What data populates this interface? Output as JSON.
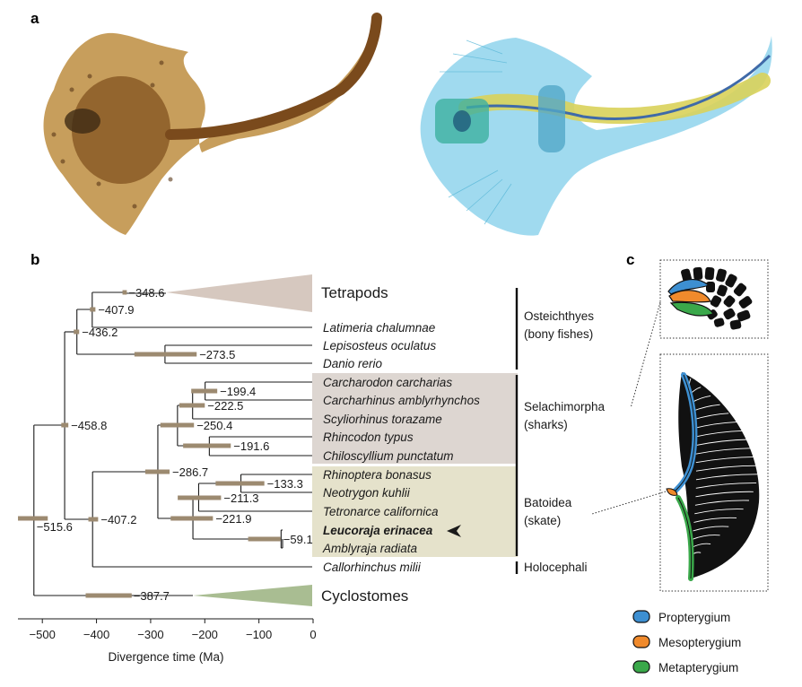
{
  "panels": {
    "a": "a",
    "b": "b",
    "c": "c"
  },
  "chart_data": {
    "type": "phylogenetic-tree",
    "xlabel": "Divergence time (Ma)",
    "xlim": [
      -555,
      0
    ],
    "xticks": [
      -500,
      -400,
      -300,
      -200,
      -100,
      0
    ],
    "tick_labels": [
      "−500",
      "−400",
      "−300",
      "−200",
      "−100",
      "0"
    ],
    "taxa": [
      {
        "name": "Tetrapods",
        "style": "collapsed"
      },
      {
        "name": "Latimeria chalumnae",
        "style": "italic"
      },
      {
        "name": "Lepisosteus oculatus",
        "style": "italic"
      },
      {
        "name": "Danio rerio",
        "style": "italic"
      },
      {
        "name": "Carcharodon carcharias",
        "style": "italic"
      },
      {
        "name": "Carcharhinus amblyrhynchos",
        "style": "italic"
      },
      {
        "name": "Scyliorhinus torazame",
        "style": "italic"
      },
      {
        "name": "Rhincodon typus",
        "style": "italic"
      },
      {
        "name": "Chiloscyllium punctatum",
        "style": "italic"
      },
      {
        "name": "Rhinoptera bonasus",
        "style": "italic"
      },
      {
        "name": "Neotrygon kuhlii",
        "style": "italic"
      },
      {
        "name": "Tetronarce californica",
        "style": "italic"
      },
      {
        "name": "Leucoraja erinacea",
        "style": "bold-italic"
      },
      {
        "name": "Amblyraja radiata",
        "style": "italic"
      },
      {
        "name": "Callorhinchus milii",
        "style": "italic"
      },
      {
        "name": "Cyclostomes",
        "style": "collapsed"
      }
    ],
    "nodes": [
      {
        "id": "root",
        "age": -515.6,
        "label": "−515.6",
        "ci": [
          -545,
          -490
        ]
      },
      {
        "id": "gnathostomes",
        "age": -458.8,
        "label": "−458.8",
        "ci": [
          -465,
          -452
        ]
      },
      {
        "id": "osteichthyes",
        "age": -436.2,
        "label": "−436.2",
        "ci": [
          -442,
          -432
        ]
      },
      {
        "id": "sarcopterygii",
        "age": -407.9,
        "label": "−407.9",
        "ci": [
          -412,
          -402
        ]
      },
      {
        "id": "tetrapods",
        "age": -348.6,
        "label": "−348.6",
        "ci": [
          -352,
          -344
        ]
      },
      {
        "id": "actinopterygii",
        "age": -273.5,
        "label": "−273.5",
        "ci": [
          -330,
          -215
        ]
      },
      {
        "id": "chondrichthyes",
        "age": -407.2,
        "label": "−407.2",
        "ci": [
          -415,
          -397
        ]
      },
      {
        "id": "elasmobranchii",
        "age": -286.7,
        "label": "−286.7",
        "ci": [
          -310,
          -265
        ]
      },
      {
        "id": "sharks",
        "age": -250.4,
        "label": "−250.4",
        "ci": [
          -282,
          -220
        ]
      },
      {
        "id": "carcharhiniformes",
        "age": -222.5,
        "label": "−222.5",
        "ci": [
          -247,
          -200
        ]
      },
      {
        "id": "carcharodon_carcharhinus",
        "age": -199.4,
        "label": "−199.4",
        "ci": [
          -225,
          -177
        ]
      },
      {
        "id": "orectolobiformes",
        "age": -191.6,
        "label": "−191.6",
        "ci": [
          -240,
          -152
        ]
      },
      {
        "id": "batoidea",
        "age": -221.9,
        "label": "−221.9",
        "ci": [
          -263,
          -185
        ]
      },
      {
        "id": "myliobatiformes_torpediniformes",
        "age": -211.3,
        "label": "−211.3",
        "ci": [
          -250,
          -170
        ]
      },
      {
        "id": "myliobatiformes",
        "age": -133.3,
        "label": "−133.3",
        "ci": [
          -180,
          -90
        ]
      },
      {
        "id": "rajidae",
        "age": -59.1,
        "label": "−59.1",
        "ci": [
          -120,
          -60
        ]
      },
      {
        "id": "cyclostomes_stem",
        "age": -387.7,
        "label": "−387.7",
        "ci": [
          -420,
          -335
        ]
      }
    ],
    "groups": [
      {
        "name": "Osteichthyes",
        "sub": "(bony fishes)"
      },
      {
        "name": "Selachimorpha",
        "sub": "(sharks)"
      },
      {
        "name": "Batoidea",
        "sub": "(skate)"
      },
      {
        "name": "Holocephali",
        "sub": ""
      }
    ]
  },
  "legend": [
    {
      "label": "Propterygium",
      "color": "#3d8fd1"
    },
    {
      "label": "Mesopterygium",
      "color": "#f08a2c"
    },
    {
      "label": "Metapterygium",
      "color": "#3aa84a"
    }
  ],
  "colors": {
    "tetrapod_wedge": "#d6c8bf",
    "cyclostome_wedge": "#a9bd92",
    "shark_box": "#ddd6d1",
    "skate_box": "#e5e2cb",
    "ci_bar": "#9c8a70",
    "skate_body_brown": "#9a6a2e",
    "skate_body_cyan": "#7ec8e0"
  }
}
